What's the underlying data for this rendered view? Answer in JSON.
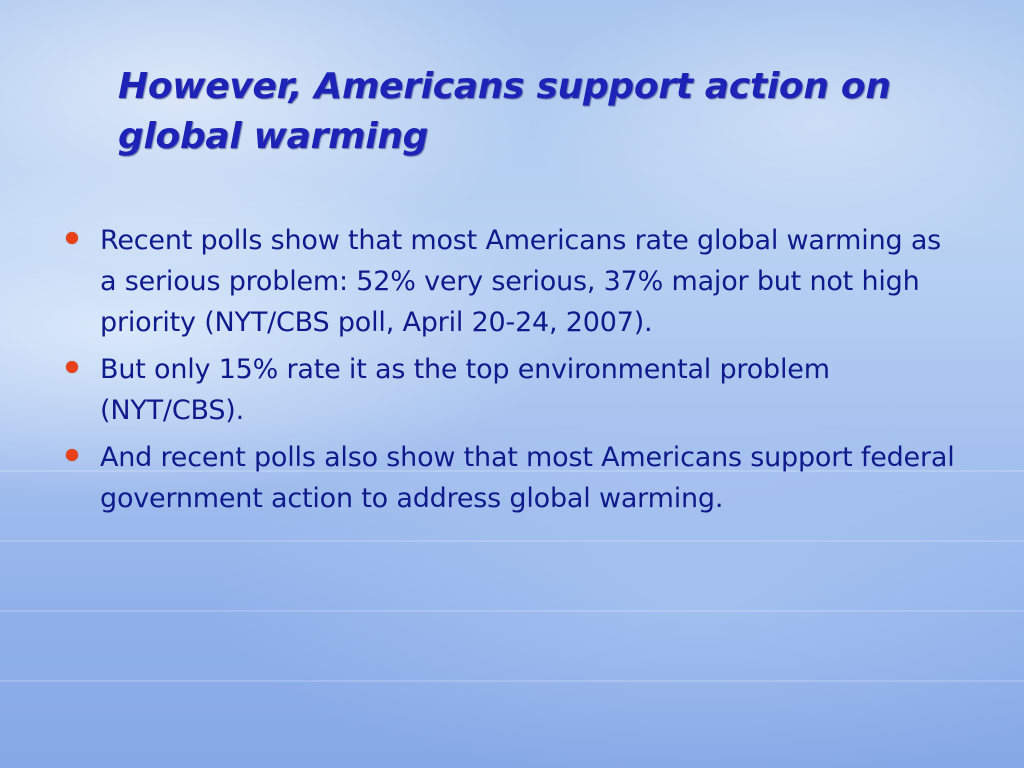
{
  "slide": {
    "title": "However, Americans support action on global warming",
    "bullets": [
      {
        "text": "Recent polls show that most Americans rate global warming as a serious problem: 52% very serious, 37% major but not high priority (NYT/CBS poll, April 20-24, 2007)."
      },
      {
        "text": "But only 15% rate it as the top environmental problem (NYT/CBS)."
      },
      {
        "text": "And recent polls also show that most Americans support federal government action to address global warming."
      }
    ]
  },
  "colors": {
    "title": "#1d23b7",
    "body_text": "#0f1a8c",
    "bullet": "#e8411a",
    "background": "#a9c6ee"
  }
}
